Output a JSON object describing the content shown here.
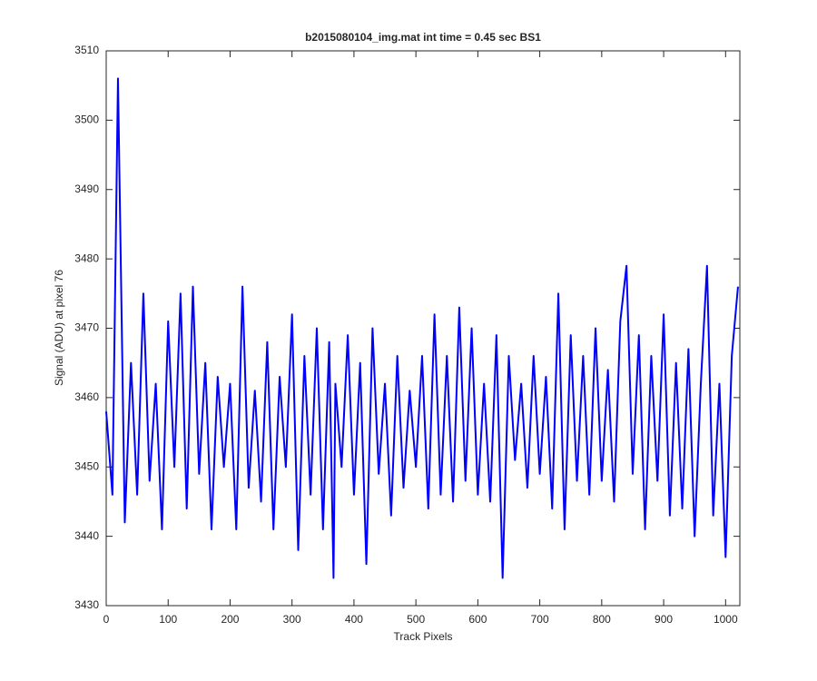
{
  "chart_data": {
    "type": "line",
    "title": "b2015080104_img.mat int time = 0.45 sec   BS1",
    "x_label": "Track Pixels",
    "y_label": "Signal (ADU) at pixel 76",
    "x": [
      0,
      10,
      19,
      30,
      40,
      50,
      60,
      70,
      80,
      90,
      100,
      110,
      120,
      130,
      140,
      150,
      160,
      170,
      180,
      190,
      200,
      210,
      220,
      230,
      240,
      250,
      260,
      270,
      280,
      290,
      300,
      310,
      320,
      330,
      340,
      350,
      360,
      367,
      370,
      380,
      390,
      400,
      410,
      420,
      430,
      440,
      450,
      460,
      470,
      480,
      490,
      500,
      510,
      520,
      530,
      540,
      550,
      560,
      570,
      580,
      590,
      600,
      610,
      620,
      630,
      640,
      650,
      660,
      670,
      680,
      690,
      700,
      710,
      720,
      730,
      740,
      750,
      760,
      770,
      780,
      790,
      800,
      810,
      820,
      830,
      840,
      850,
      860,
      870,
      880,
      890,
      900,
      910,
      920,
      930,
      940,
      950,
      960,
      970,
      980,
      990,
      1000,
      1010,
      1020
    ],
    "series": [
      {
        "color": "#0000ff",
        "values": [
          3458,
          3446,
          3506,
          3442,
          3465,
          3446,
          3475,
          3448,
          3462,
          3441,
          3471,
          3450,
          3475,
          3444,
          3476,
          3449,
          3465,
          3441,
          3463,
          3450,
          3462,
          3441,
          3476,
          3447,
          3461,
          3445,
          3468,
          3441,
          3463,
          3450,
          3472,
          3438,
          3466,
          3446,
          3470,
          3441,
          3468,
          3434,
          3462,
          3450,
          3469,
          3446,
          3465,
          3436,
          3470,
          3449,
          3462,
          3443,
          3466,
          3447,
          3461,
          3450,
          3466,
          3444,
          3472,
          3446,
          3466,
          3445,
          3473,
          3448,
          3470,
          3446,
          3462,
          3445,
          3469,
          3434,
          3466,
          3451,
          3462,
          3447,
          3466,
          3449,
          3463,
          3444,
          3475,
          3441,
          3469,
          3448,
          3466,
          3446,
          3470,
          3448,
          3464,
          3445,
          3471,
          3479,
          3449,
          3469,
          3441,
          3466,
          3448,
          3472,
          3443,
          3465,
          3444,
          3467,
          3440,
          3462,
          3479,
          3443,
          3462,
          3437,
          3466,
          3476
        ]
      }
    ],
    "xlim": [
      0,
      1023
    ],
    "ylim": [
      3430,
      3510
    ],
    "xticks": [
      0,
      100,
      200,
      300,
      400,
      500,
      600,
      700,
      800,
      900,
      1000
    ],
    "yticks": [
      3430,
      3440,
      3450,
      3460,
      3470,
      3480,
      3490,
      3500,
      3510
    ]
  }
}
